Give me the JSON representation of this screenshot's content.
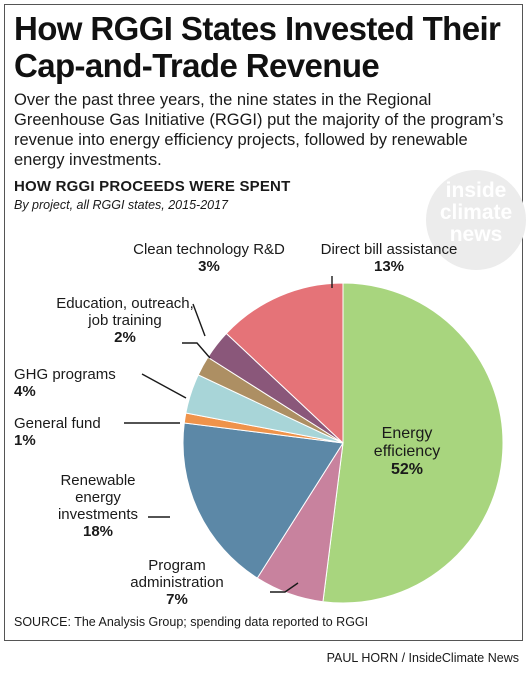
{
  "header": {
    "title_line1": "How RGGI States Invested Their",
    "title_line2": "Cap-and-Trade Revenue",
    "intro": "Over the past three years, the nine states in the Regional Greenhouse Gas Initiative (RGGI) put the majority of the program’s revenue into energy efficiency projects, followed by renewable energy investments."
  },
  "chart_data": {
    "type": "pie",
    "title": "HOW RGGI PROCEEDS WERE SPENT",
    "subtitle": "By project, all RGGI states, 2015-2017",
    "unit": "%",
    "slices": [
      {
        "name": "Energy efficiency",
        "label_lines": [
          "Energy",
          "efficiency"
        ],
        "value": 52,
        "value_label": "52%",
        "color": "#a8d57e"
      },
      {
        "name": "Program administration",
        "label_lines": [
          "Program",
          "administration"
        ],
        "value": 7,
        "value_label": "7%",
        "color": "#c8829e"
      },
      {
        "name": "Renewable energy investments",
        "label_lines": [
          "Renewable",
          "energy",
          "investments"
        ],
        "value": 18,
        "value_label": "18%",
        "color": "#5c88a7"
      },
      {
        "name": "General fund",
        "label_lines": [
          "General fund"
        ],
        "value": 1,
        "value_label": "1%",
        "color": "#ef934a"
      },
      {
        "name": "GHG programs",
        "label_lines": [
          "GHG programs"
        ],
        "value": 4,
        "value_label": "4%",
        "color": "#a8d5d8"
      },
      {
        "name": "Education, outreach, job training",
        "label_lines": [
          "Education, outreach,",
          "job training"
        ],
        "value": 2,
        "value_label": "2%",
        "color": "#ad8f63"
      },
      {
        "name": "Clean technology R&D",
        "label_lines": [
          "Clean technology R&D"
        ],
        "value": 3,
        "value_label": "3%",
        "color": "#8a577a"
      },
      {
        "name": "Direct bill assistance",
        "label_lines": [
          "Direct bill assistance"
        ],
        "value": 13,
        "value_label": "13%",
        "color": "#e57378"
      }
    ]
  },
  "footer": {
    "source": "SOURCE: The Analysis Group; spending data reported to RGGI",
    "credit": "PAUL HORN / InsideClimate News"
  },
  "logo": {
    "line1": "inside",
    "line2": "climate",
    "line3": "news",
    "color": "#ececec"
  }
}
